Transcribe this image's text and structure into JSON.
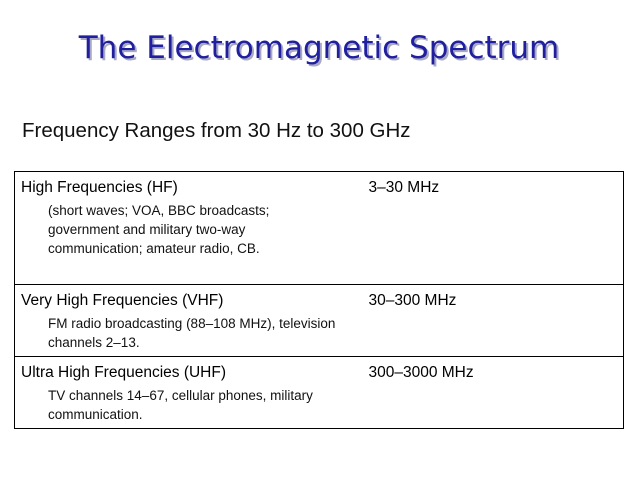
{
  "slide": {
    "title": "The Electromagnetic Spectrum",
    "subtitle": "Frequency Ranges from 30 Hz to 300 GHz"
  },
  "table": {
    "rows": [
      {
        "band": "High Frequencies (HF)",
        "detail": "(short waves; VOA, BBC broadcasts; government and military two-way communication; amateur radio, CB.",
        "range": "3–30 MHz"
      },
      {
        "band": "Very High Frequencies (VHF)",
        "detail": "FM radio broadcasting (88–108 MHz), television channels 2–13.",
        "range": "30–300 MHz"
      },
      {
        "band": "Ultra High Frequencies (UHF)",
        "detail": "TV channels 14–67, cellular phones, military communication.",
        "range": "300–3000 MHz"
      }
    ]
  }
}
